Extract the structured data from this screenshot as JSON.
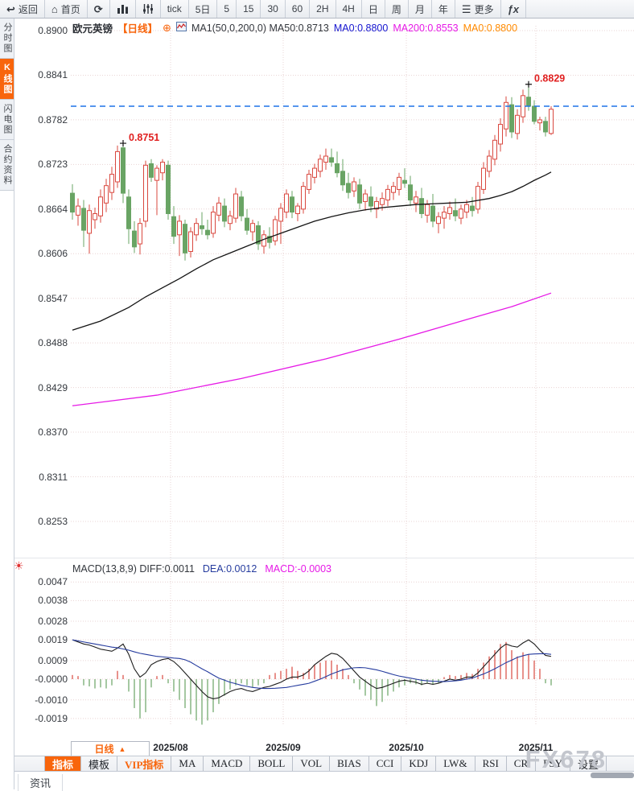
{
  "toolbar": {
    "back_label": "返回",
    "home_label": "首页",
    "more_label": "更多",
    "icons": {
      "back": "↩",
      "home": "⌂",
      "refresh": "⟳",
      "menu": "☰",
      "fx": "ƒx",
      "sun": "☀",
      "collapse": "⊕",
      "period_arrow": "▲"
    },
    "periods": {
      "tick": "tick",
      "d5": "5日",
      "m5": "5",
      "m15": "15",
      "m30": "30",
      "m60": "60",
      "h2": "2H",
      "h4": "4H",
      "day": "日",
      "week": "周",
      "month": "月",
      "year": "年"
    }
  },
  "sidebar": {
    "items": [
      {
        "label": "分时图",
        "active": false
      },
      {
        "label": "K线图",
        "active": true
      },
      {
        "label": "闪电图",
        "active": false
      },
      {
        "label": "合约资料",
        "active": false
      }
    ]
  },
  "chart_header": {
    "symbol": "欧元英镑",
    "period_tag": "【日线】",
    "ma_line": "MA1(50,0,200,0) MA50:0.8713",
    "ma0_blue": "MA0:0.8800",
    "ma200": "MA200:0.8553",
    "ma0_orange": "MA0:0.8800"
  },
  "macd_header": {
    "title": "MACD(13,8,9) DIFF:0.0011",
    "dea": "DEA:0.0012",
    "macd": "MACD:-0.0003"
  },
  "bottom": {
    "period_label": "日线",
    "tabs": [
      {
        "label": "指标"
      },
      {
        "label": "模板"
      },
      {
        "label": "VIP指标"
      },
      {
        "label": "MA"
      },
      {
        "label": "MACD"
      },
      {
        "label": "BOLL"
      },
      {
        "label": "VOL"
      },
      {
        "label": "BIAS"
      },
      {
        "label": "CCI"
      },
      {
        "label": "KDJ"
      },
      {
        "label": "LW&"
      },
      {
        "label": "RSI"
      },
      {
        "label": "CR"
      },
      {
        "label": "PSY"
      },
      {
        "label": "设置"
      }
    ],
    "news_label": "资讯",
    "watermark": "FX678"
  },
  "chart_data": {
    "type": "candlestick",
    "symbol": "欧元英镑",
    "period": "日线",
    "y_axis_labels": [
      "0.8900",
      "0.8841",
      "0.8782",
      "0.8723",
      "0.8664",
      "0.8606",
      "0.8547",
      "0.8488",
      "0.8429",
      "0.8370",
      "0.8311",
      "0.8253"
    ],
    "x_axis_labels": [
      "2025/08",
      "2025/09",
      "2025/10",
      "2025/11"
    ],
    "current_price": 0.88,
    "annotations": [
      {
        "index": 9,
        "price": 8751,
        "label": "0.8751"
      },
      {
        "index": 81,
        "price": 8829,
        "label": "0.8829"
      }
    ],
    "candles_x10000": [
      [
        8685,
        8697,
        8650,
        8660
      ],
      [
        8656,
        8678,
        8642,
        8668
      ],
      [
        8665,
        8676,
        8614,
        8636
      ],
      [
        8632,
        8670,
        8605,
        8662
      ],
      [
        8650,
        8666,
        8638,
        8658
      ],
      [
        8655,
        8690,
        8646,
        8680
      ],
      [
        8672,
        8704,
        8660,
        8695
      ],
      [
        8686,
        8720,
        8676,
        8710
      ],
      [
        8700,
        8748,
        8692,
        8740
      ],
      [
        8745,
        8751,
        8672,
        8685
      ],
      [
        8680,
        8690,
        8618,
        8638
      ],
      [
        8635,
        8648,
        8606,
        8614
      ],
      [
        8618,
        8652,
        8604,
        8645
      ],
      [
        8648,
        8728,
        8640,
        8722
      ],
      [
        8724,
        8730,
        8700,
        8706
      ],
      [
        8702,
        8722,
        8656,
        8718
      ],
      [
        8712,
        8730,
        8702,
        8726
      ],
      [
        8722,
        8728,
        8650,
        8658
      ],
      [
        8654,
        8668,
        8618,
        8628
      ],
      [
        8630,
        8656,
        8602,
        8648
      ],
      [
        8644,
        8650,
        8596,
        8606
      ],
      [
        8608,
        8640,
        8600,
        8634
      ],
      [
        8630,
        8652,
        8622,
        8645
      ],
      [
        8642,
        8660,
        8630,
        8638
      ],
      [
        8636,
        8650,
        8624,
        8630
      ],
      [
        8632,
        8668,
        8626,
        8660
      ],
      [
        8656,
        8680,
        8648,
        8672
      ],
      [
        8668,
        8678,
        8640,
        8648
      ],
      [
        8645,
        8662,
        8636,
        8655
      ],
      [
        8652,
        8692,
        8646,
        8684
      ],
      [
        8680,
        8688,
        8648,
        8655
      ],
      [
        8652,
        8664,
        8630,
        8636
      ],
      [
        8634,
        8650,
        8622,
        8645
      ],
      [
        8642,
        8648,
        8610,
        8618
      ],
      [
        8615,
        8636,
        8605,
        8630
      ],
      [
        8628,
        8640,
        8612,
        8620
      ],
      [
        8622,
        8655,
        8616,
        8650
      ],
      [
        8648,
        8672,
        8618,
        8665
      ],
      [
        8660,
        8690,
        8652,
        8684
      ],
      [
        8680,
        8688,
        8652,
        8660
      ],
      [
        8658,
        8672,
        8648,
        8668
      ],
      [
        8664,
        8700,
        8658,
        8694
      ],
      [
        8690,
        8716,
        8684,
        8710
      ],
      [
        8706,
        8724,
        8698,
        8718
      ],
      [
        8714,
        8736,
        8706,
        8730
      ],
      [
        8726,
        8744,
        8716,
        8734
      ],
      [
        8732,
        8744,
        8720,
        8726
      ],
      [
        8724,
        8740,
        8706,
        8712
      ],
      [
        8714,
        8730,
        8688,
        8696
      ],
      [
        8698,
        8712,
        8678,
        8686
      ],
      [
        8688,
        8706,
        8680,
        8700
      ],
      [
        8696,
        8704,
        8664,
        8672
      ],
      [
        8674,
        8690,
        8662,
        8684
      ],
      [
        8680,
        8694,
        8660,
        8668
      ],
      [
        8664,
        8680,
        8652,
        8674
      ],
      [
        8670,
        8686,
        8662,
        8678
      ],
      [
        8676,
        8696,
        8668,
        8690
      ],
      [
        8686,
        8700,
        8676,
        8694
      ],
      [
        8690,
        8712,
        8682,
        8706
      ],
      [
        8702,
        8718,
        8692,
        8698
      ],
      [
        8696,
        8708,
        8668,
        8676
      ],
      [
        8672,
        8688,
        8660,
        8680
      ],
      [
        8678,
        8692,
        8652,
        8658
      ],
      [
        8656,
        8676,
        8646,
        8670
      ],
      [
        8668,
        8684,
        8640,
        8648
      ],
      [
        8645,
        8660,
        8632,
        8654
      ],
      [
        8652,
        8668,
        8638,
        8660
      ],
      [
        8658,
        8674,
        8650,
        8666
      ],
      [
        8662,
        8678,
        8648,
        8655
      ],
      [
        8652,
        8670,
        8644,
        8664
      ],
      [
        8660,
        8676,
        8652,
        8670
      ],
      [
        8668,
        8680,
        8654,
        8662
      ],
      [
        8664,
        8700,
        8658,
        8694
      ],
      [
        8690,
        8726,
        8684,
        8718
      ],
      [
        8714,
        8742,
        8706,
        8734
      ],
      [
        8730,
        8762,
        8722,
        8755
      ],
      [
        8750,
        8784,
        8740,
        8776
      ],
      [
        8770,
        8813,
        8760,
        8805
      ],
      [
        8802,
        8812,
        8758,
        8766
      ],
      [
        8764,
        8796,
        8756,
        8788
      ],
      [
        8786,
        8822,
        8778,
        8814
      ],
      [
        8812,
        8829,
        8794,
        8800
      ],
      [
        8800,
        8808,
        8776,
        8780
      ],
      [
        8778,
        8786,
        8768,
        8782
      ],
      [
        8780,
        8786,
        8760,
        8766
      ],
      [
        8764,
        8800,
        8762,
        8796
      ]
    ],
    "ma50_waypoints": [
      [
        0,
        8504
      ],
      [
        5,
        8516
      ],
      [
        10,
        8534
      ],
      [
        13,
        8548
      ],
      [
        16,
        8560
      ],
      [
        19,
        8572
      ],
      [
        22,
        8585
      ],
      [
        25,
        8597
      ],
      [
        28,
        8606
      ],
      [
        31,
        8615
      ],
      [
        34,
        8624
      ],
      [
        37,
        8632
      ],
      [
        40,
        8640
      ],
      [
        43,
        8648
      ],
      [
        46,
        8654
      ],
      [
        49,
        8659
      ],
      [
        52,
        8663
      ],
      [
        55,
        8666
      ],
      [
        58,
        8668
      ],
      [
        61,
        8670
      ],
      [
        64,
        8671
      ],
      [
        67,
        8672
      ],
      [
        70,
        8673
      ],
      [
        74,
        8678
      ],
      [
        76,
        8682
      ],
      [
        78,
        8687
      ],
      [
        80,
        8694
      ],
      [
        82,
        8702
      ],
      [
        84,
        8709
      ],
      [
        85,
        8713
      ]
    ],
    "ma200_waypoints": [
      [
        0,
        8404
      ],
      [
        15,
        8418
      ],
      [
        30,
        8440
      ],
      [
        45,
        8466
      ],
      [
        58,
        8492
      ],
      [
        70,
        8518
      ],
      [
        78,
        8535
      ],
      [
        85,
        8553
      ]
    ],
    "macd": {
      "params": "(13,8,9)",
      "y_axis_labels": [
        "0.0047",
        "0.0038",
        "0.0028",
        "0.0019",
        "0.0009",
        "-0.0000",
        "-0.0010",
        "-0.0019"
      ],
      "y_axis_values_x10000": [
        47,
        38,
        28,
        19,
        9,
        0,
        -10,
        -19
      ],
      "diff": [
        19,
        18,
        17,
        16.5,
        15.5,
        14.5,
        14,
        13.5,
        15,
        17,
        12,
        5,
        1,
        3,
        7,
        8.5,
        9.5,
        10,
        8.5,
        6,
        3,
        0,
        -3,
        -6,
        -8.5,
        -9.5,
        -9,
        -7.5,
        -6,
        -5,
        -4.5,
        -5.5,
        -6,
        -5,
        -4,
        -3.5,
        -2.5,
        -1.5,
        0,
        1,
        1,
        2,
        4,
        7,
        9,
        11,
        12.5,
        12,
        10,
        7,
        4,
        1,
        -1,
        -3,
        -4.5,
        -4,
        -3,
        -2,
        -1,
        -0.5,
        -1,
        -1.5,
        -2.5,
        -2,
        -2.5,
        -2,
        -1,
        0,
        -0.5,
        0,
        1,
        1,
        3,
        6,
        9,
        12,
        15,
        17,
        16,
        15.5,
        17.5,
        19,
        17,
        14,
        11.5,
        11
      ],
      "dea": [
        19,
        18.5,
        18,
        17.5,
        17,
        16.5,
        16,
        15.5,
        15.2,
        14.6,
        14,
        13.2,
        12.5,
        12,
        11.5,
        11,
        10.8,
        10.5,
        10.2,
        10,
        9.4,
        8.2,
        6.6,
        5,
        3.6,
        2,
        0.5,
        -0.5,
        -1.5,
        -2.2,
        -3,
        -3.5,
        -4,
        -4.3,
        -4.5,
        -4.5,
        -4.4,
        -4.2,
        -4,
        -3.5,
        -3,
        -2.5,
        -2,
        -1,
        0,
        1.2,
        2.5,
        3.5,
        4.5,
        5,
        5.5,
        5.6,
        5.5,
        5,
        4.5,
        3.8,
        3,
        2.2,
        1.5,
        1,
        0.5,
        0,
        -0.5,
        -0.8,
        -1,
        -1.1,
        -1.2,
        -1,
        -0.8,
        -0.5,
        0,
        0.5,
        1.5,
        2.5,
        3.7,
        5,
        6.5,
        8,
        9.2,
        10.5,
        11.3,
        12,
        12.2,
        12.3,
        12.3,
        12
      ],
      "hist": [
        2,
        1.5,
        -3,
        -3.5,
        -4.5,
        -4,
        -4.5,
        -3,
        4,
        2,
        -6,
        -14,
        -19,
        -16,
        -4,
        1.5,
        2,
        -2,
        -6,
        -10,
        -14,
        -17,
        -20,
        -22,
        -20,
        -16,
        -12,
        -8,
        -5,
        -3,
        -2,
        -3,
        -4,
        -3,
        -2,
        2,
        3,
        4,
        5,
        6,
        4,
        3,
        5,
        7,
        8,
        9,
        9,
        7,
        5,
        2,
        -2,
        -5,
        -8,
        -10,
        -13,
        -11,
        -8,
        -6,
        -4,
        -3,
        -2,
        -2.5,
        -3,
        -2,
        -2.5,
        -2,
        1,
        2,
        1.5,
        2,
        3,
        2.5,
        5,
        8,
        11,
        14,
        17,
        18,
        14,
        11,
        13,
        12,
        9,
        5,
        -2,
        -3
      ]
    },
    "colors": {
      "up": "#d9483f",
      "down": "#69a464",
      "ma50": "#141414",
      "ma200": "#e619e6",
      "diff": "#1c1c1c",
      "dea": "#253b9e",
      "price_line": "#1e74e8",
      "annotation": "#e02020",
      "grid": "#e9d4d4"
    }
  }
}
